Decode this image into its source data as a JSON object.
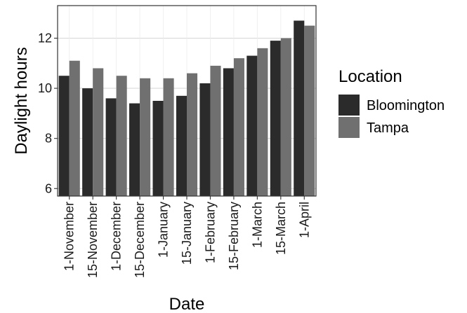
{
  "chart_data": {
    "type": "bar",
    "xlabel": "Date",
    "ylabel": "Daylight hours",
    "ylim": [
      5.7,
      13.3
    ],
    "yticks": [
      6,
      8,
      10,
      12
    ],
    "grid": true,
    "legend_title": "Location",
    "legend_position": "right",
    "categories": [
      "1-November",
      "15-November",
      "1-December",
      "15-December",
      "1-January",
      "15-January",
      "1-February",
      "15-February",
      "1-March",
      "15-March",
      "1-April"
    ],
    "series": [
      {
        "name": "Bloomington",
        "color": "#2b2b2b",
        "values": [
          10.5,
          10.0,
          9.6,
          9.4,
          9.5,
          9.7,
          10.2,
          10.8,
          11.3,
          11.9,
          12.7
        ]
      },
      {
        "name": "Tampa",
        "color": "#707070",
        "values": [
          11.1,
          10.8,
          10.5,
          10.4,
          10.4,
          10.6,
          10.9,
          11.2,
          11.6,
          12.0,
          12.5
        ]
      }
    ]
  }
}
